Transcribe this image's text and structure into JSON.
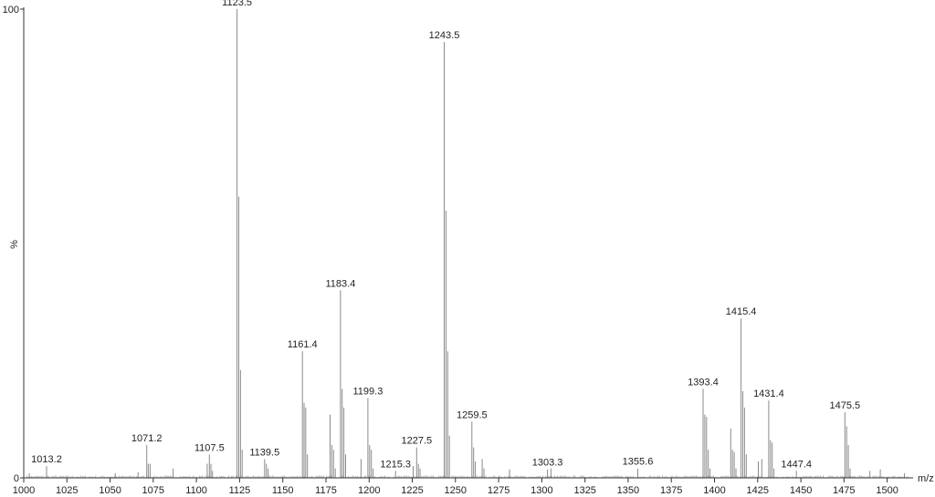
{
  "chart_data": {
    "type": "bar",
    "title": "",
    "xlabel": "m/z",
    "ylabel": "%",
    "xlim": [
      1000,
      1515
    ],
    "ylim": [
      0,
      100
    ],
    "grid": false,
    "x_ticks": [
      "1000",
      "1025",
      "1050",
      "1075",
      "1100",
      "1125",
      "1150",
      "1175",
      "1200",
      "1225",
      "1250",
      "1275",
      "1300",
      "1325",
      "1350",
      "1375",
      "1400",
      "1425",
      "1450",
      "1475",
      "1500"
    ],
    "y_ticks": [
      "0",
      "100"
    ],
    "peaks": [
      {
        "mz": 1003.2,
        "intensity": 1.0
      },
      {
        "mz": 1013.2,
        "intensity": 2.5,
        "label": "1013.2"
      },
      {
        "mz": 1053.0,
        "intensity": 1.0
      },
      {
        "mz": 1066.2,
        "intensity": 1.2
      },
      {
        "mz": 1071.2,
        "intensity": 7.0,
        "label": "1071.2"
      },
      {
        "mz": 1072.1,
        "intensity": 3.0
      },
      {
        "mz": 1073.2,
        "intensity": 3.0
      },
      {
        "mz": 1086.5,
        "intensity": 2.0
      },
      {
        "mz": 1106.2,
        "intensity": 3.0
      },
      {
        "mz": 1107.5,
        "intensity": 5.0,
        "label": "1107.5"
      },
      {
        "mz": 1108.4,
        "intensity": 3.0
      },
      {
        "mz": 1109.3,
        "intensity": 1.5
      },
      {
        "mz": 1123.5,
        "intensity": 100.0,
        "label": "1123.5"
      },
      {
        "mz": 1124.5,
        "intensity": 60.0
      },
      {
        "mz": 1125.5,
        "intensity": 23.0
      },
      {
        "mz": 1126.5,
        "intensity": 6.0
      },
      {
        "mz": 1139.5,
        "intensity": 4.0,
        "label": "1139.5"
      },
      {
        "mz": 1140.5,
        "intensity": 3.0
      },
      {
        "mz": 1141.5,
        "intensity": 2.0
      },
      {
        "mz": 1161.4,
        "intensity": 27.0,
        "label": "1161.4"
      },
      {
        "mz": 1162.3,
        "intensity": 16.0
      },
      {
        "mz": 1163.3,
        "intensity": 15.0
      },
      {
        "mz": 1164.3,
        "intensity": 5.0
      },
      {
        "mz": 1177.4,
        "intensity": 13.5
      },
      {
        "mz": 1178.4,
        "intensity": 7.0
      },
      {
        "mz": 1179.4,
        "intensity": 6.0
      },
      {
        "mz": 1180.4,
        "intensity": 2.0
      },
      {
        "mz": 1183.4,
        "intensity": 40.0,
        "label": "1183.4"
      },
      {
        "mz": 1184.4,
        "intensity": 19.0
      },
      {
        "mz": 1185.4,
        "intensity": 15.0
      },
      {
        "mz": 1186.4,
        "intensity": 5.0
      },
      {
        "mz": 1195.3,
        "intensity": 4.0
      },
      {
        "mz": 1199.3,
        "intensity": 17.0,
        "label": "1199.3"
      },
      {
        "mz": 1200.3,
        "intensity": 7.0
      },
      {
        "mz": 1201.3,
        "intensity": 6.0
      },
      {
        "mz": 1202.3,
        "intensity": 2.0
      },
      {
        "mz": 1215.3,
        "intensity": 1.5,
        "label": "1215.3"
      },
      {
        "mz": 1225.5,
        "intensity": 2.5
      },
      {
        "mz": 1227.5,
        "intensity": 6.5,
        "label": "1227.5"
      },
      {
        "mz": 1228.5,
        "intensity": 3.0
      },
      {
        "mz": 1229.5,
        "intensity": 2.0
      },
      {
        "mz": 1243.5,
        "intensity": 93.0,
        "label": "1243.5"
      },
      {
        "mz": 1244.5,
        "intensity": 57.0
      },
      {
        "mz": 1245.5,
        "intensity": 27.0
      },
      {
        "mz": 1246.5,
        "intensity": 9.0
      },
      {
        "mz": 1259.5,
        "intensity": 12.0,
        "label": "1259.5"
      },
      {
        "mz": 1260.5,
        "intensity": 6.5
      },
      {
        "mz": 1261.5,
        "intensity": 3.5
      },
      {
        "mz": 1265.5,
        "intensity": 4.0
      },
      {
        "mz": 1266.5,
        "intensity": 2.0
      },
      {
        "mz": 1281.3,
        "intensity": 1.8
      },
      {
        "mz": 1303.3,
        "intensity": 1.8,
        "label": "1303.3"
      },
      {
        "mz": 1305.3,
        "intensity": 2.0
      },
      {
        "mz": 1355.6,
        "intensity": 2.0,
        "label": "1355.6"
      },
      {
        "mz": 1393.4,
        "intensity": 19.0,
        "label": "1393.4"
      },
      {
        "mz": 1394.4,
        "intensity": 13.5
      },
      {
        "mz": 1395.4,
        "intensity": 13.0
      },
      {
        "mz": 1396.4,
        "intensity": 6.0
      },
      {
        "mz": 1397.4,
        "intensity": 2.0
      },
      {
        "mz": 1409.4,
        "intensity": 10.5
      },
      {
        "mz": 1410.4,
        "intensity": 6.0
      },
      {
        "mz": 1411.4,
        "intensity": 5.5
      },
      {
        "mz": 1412.4,
        "intensity": 2.0
      },
      {
        "mz": 1415.4,
        "intensity": 34.0,
        "label": "1415.4"
      },
      {
        "mz": 1416.4,
        "intensity": 18.5
      },
      {
        "mz": 1417.4,
        "intensity": 15.0
      },
      {
        "mz": 1418.4,
        "intensity": 5.0
      },
      {
        "mz": 1425.4,
        "intensity": 3.5
      },
      {
        "mz": 1427.4,
        "intensity": 4.0
      },
      {
        "mz": 1431.4,
        "intensity": 16.5,
        "label": "1431.4"
      },
      {
        "mz": 1432.4,
        "intensity": 8.0
      },
      {
        "mz": 1433.4,
        "intensity": 7.5
      },
      {
        "mz": 1434.4,
        "intensity": 2.0
      },
      {
        "mz": 1447.4,
        "intensity": 1.5,
        "label": "1447.4"
      },
      {
        "mz": 1475.5,
        "intensity": 14.0,
        "label": "1475.5"
      },
      {
        "mz": 1476.5,
        "intensity": 11.0
      },
      {
        "mz": 1477.5,
        "intensity": 7.0
      },
      {
        "mz": 1478.5,
        "intensity": 2.0
      },
      {
        "mz": 1490.0,
        "intensity": 1.5
      },
      {
        "mz": 1496.0,
        "intensity": 1.8
      },
      {
        "mz": 1510.0,
        "intensity": 1.0
      }
    ]
  }
}
